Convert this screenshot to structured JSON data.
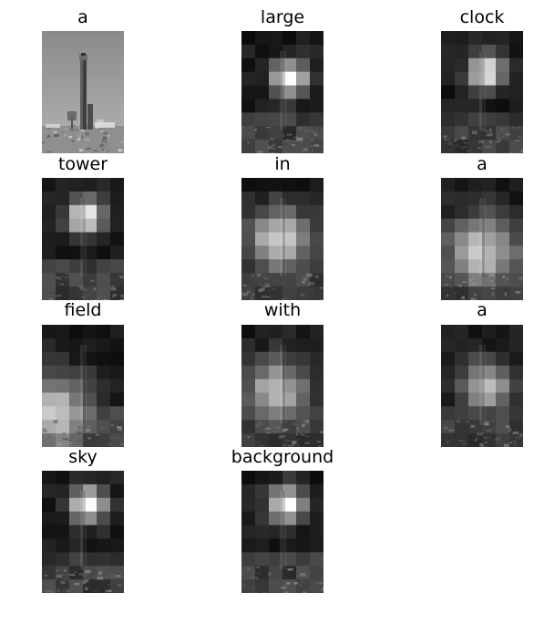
{
  "figure": {
    "tokens": [
      "a",
      "large",
      "clock",
      "tower",
      "in",
      "a",
      "field",
      "with",
      "a",
      "sky",
      "background"
    ],
    "panels": [
      {
        "title": "a",
        "kind": "original"
      },
      {
        "title": "large",
        "kind": "attention"
      },
      {
        "title": "clock",
        "kind": "attention"
      },
      {
        "title": "tower",
        "kind": "attention"
      },
      {
        "title": "in",
        "kind": "attention"
      },
      {
        "title": "a",
        "kind": "attention"
      },
      {
        "title": "field",
        "kind": "attention"
      },
      {
        "title": "with",
        "kind": "attention"
      },
      {
        "title": "a",
        "kind": "attention"
      },
      {
        "title": "sky",
        "kind": "attention"
      },
      {
        "title": "background",
        "kind": "attention"
      }
    ],
    "colors": {
      "background": "#ffffff",
      "text": "#000000",
      "sky": "#9c9c9c",
      "tower": "#505050"
    }
  }
}
